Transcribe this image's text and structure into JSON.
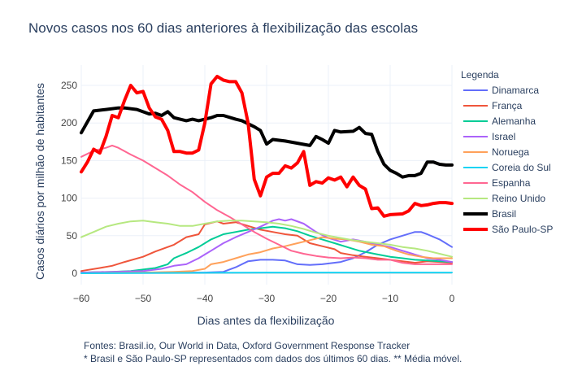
{
  "chart_data": {
    "type": "line",
    "title": "Novos casos nos 60 dias anteriores à flexibilização das escolas",
    "xlabel": "Dias antes da flexibilização",
    "ylabel": "Casos diários por milhão de habitantes",
    "xlim": [
      -60,
      0
    ],
    "ylim": [
      -15,
      275
    ],
    "x_ticks": [
      "−60",
      "−50",
      "−40",
      "−30",
      "−20",
      "−10",
      "0"
    ],
    "y_ticks": [
      "0",
      "50",
      "100",
      "150",
      "200",
      "250"
    ],
    "legend_title": "Legenda",
    "legend_position": "right",
    "grid": true,
    "series": [
      {
        "name": "Dinamarca",
        "color": "#636efa",
        "width": 2,
        "points": [
          [
            -60,
            1
          ],
          [
            -50,
            1
          ],
          [
            -40,
            1
          ],
          [
            -37,
            2
          ],
          [
            -35,
            8
          ],
          [
            -33,
            16
          ],
          [
            -31,
            18
          ],
          [
            -29,
            18
          ],
          [
            -27,
            17
          ],
          [
            -25,
            12
          ],
          [
            -23,
            11
          ],
          [
            -21,
            12
          ],
          [
            -18,
            15
          ],
          [
            -16,
            20
          ],
          [
            -14,
            28
          ],
          [
            -12,
            38
          ],
          [
            -10,
            45
          ],
          [
            -8,
            50
          ],
          [
            -6,
            55
          ],
          [
            -5,
            55
          ],
          [
            -4,
            52
          ],
          [
            -2,
            45
          ],
          [
            0,
            35
          ]
        ]
      },
      {
        "name": "França",
        "color": "#ef553b",
        "width": 2,
        "points": [
          [
            -60,
            3
          ],
          [
            -57,
            7
          ],
          [
            -55,
            10
          ],
          [
            -53,
            15
          ],
          [
            -50,
            22
          ],
          [
            -48,
            29
          ],
          [
            -45,
            38
          ],
          [
            -43,
            48
          ],
          [
            -41,
            52
          ],
          [
            -40,
            65
          ],
          [
            -38,
            69
          ],
          [
            -37,
            66
          ],
          [
            -35,
            68
          ],
          [
            -33,
            63
          ],
          [
            -31,
            58
          ],
          [
            -29,
            55
          ],
          [
            -27,
            52
          ],
          [
            -25,
            50
          ],
          [
            -23,
            40
          ],
          [
            -21,
            36
          ],
          [
            -19,
            32
          ],
          [
            -18,
            27
          ],
          [
            -16,
            24
          ],
          [
            -14,
            22
          ],
          [
            -12,
            20
          ],
          [
            -10,
            18
          ],
          [
            -8,
            16
          ],
          [
            -6,
            14
          ],
          [
            -4,
            16
          ],
          [
            -2,
            15
          ],
          [
            0,
            14
          ]
        ]
      },
      {
        "name": "Alemanha",
        "color": "#00cc96",
        "width": 2,
        "points": [
          [
            -60,
            1
          ],
          [
            -55,
            2
          ],
          [
            -52,
            3
          ],
          [
            -50,
            5
          ],
          [
            -48,
            7
          ],
          [
            -46,
            12
          ],
          [
            -45,
            20
          ],
          [
            -43,
            27
          ],
          [
            -41,
            35
          ],
          [
            -39,
            45
          ],
          [
            -37,
            52
          ],
          [
            -35,
            55
          ],
          [
            -33,
            58
          ],
          [
            -31,
            60
          ],
          [
            -29,
            62
          ],
          [
            -27,
            60
          ],
          [
            -25,
            56
          ],
          [
            -23,
            50
          ],
          [
            -21,
            45
          ],
          [
            -19,
            40
          ],
          [
            -17,
            35
          ],
          [
            -15,
            30
          ],
          [
            -12,
            25
          ],
          [
            -10,
            22
          ],
          [
            -8,
            20
          ],
          [
            -6,
            18
          ],
          [
            -4,
            17
          ],
          [
            -2,
            16
          ],
          [
            0,
            15
          ]
        ]
      },
      {
        "name": "Israel",
        "color": "#ab63fa",
        "width": 2,
        "points": [
          [
            -60,
            1
          ],
          [
            -55,
            2
          ],
          [
            -50,
            3
          ],
          [
            -47,
            6
          ],
          [
            -45,
            10
          ],
          [
            -43,
            12
          ],
          [
            -41,
            20
          ],
          [
            -39,
            30
          ],
          [
            -37,
            40
          ],
          [
            -35,
            48
          ],
          [
            -33,
            55
          ],
          [
            -31,
            62
          ],
          [
            -29,
            70
          ],
          [
            -28,
            72
          ],
          [
            -27,
            70
          ],
          [
            -26,
            72
          ],
          [
            -24,
            66
          ],
          [
            -22,
            55
          ],
          [
            -20,
            47
          ],
          [
            -18,
            42
          ],
          [
            -16,
            45
          ],
          [
            -14,
            42
          ],
          [
            -12,
            38
          ],
          [
            -10,
            35
          ],
          [
            -8,
            30
          ],
          [
            -6,
            25
          ],
          [
            -4,
            20
          ],
          [
            -2,
            18
          ],
          [
            0,
            15
          ]
        ]
      },
      {
        "name": "Noruega",
        "color": "#ffa15a",
        "width": 2,
        "points": [
          [
            -60,
            0
          ],
          [
            -50,
            1
          ],
          [
            -45,
            2
          ],
          [
            -42,
            3
          ],
          [
            -40,
            6
          ],
          [
            -39,
            12
          ],
          [
            -37,
            15
          ],
          [
            -35,
            20
          ],
          [
            -33,
            25
          ],
          [
            -31,
            28
          ],
          [
            -29,
            33
          ],
          [
            -27,
            36
          ],
          [
            -25,
            40
          ],
          [
            -23,
            44
          ],
          [
            -21,
            48
          ],
          [
            -19,
            46
          ],
          [
            -17,
            45
          ],
          [
            -15,
            42
          ],
          [
            -13,
            38
          ],
          [
            -11,
            36
          ],
          [
            -9,
            30
          ],
          [
            -7,
            25
          ],
          [
            -5,
            22
          ],
          [
            -3,
            20
          ],
          [
            -1,
            20
          ],
          [
            0,
            20
          ]
        ]
      },
      {
        "name": "Coreia do Sul",
        "color": "#19d3f3",
        "width": 2,
        "points": [
          [
            -60,
            0
          ],
          [
            -30,
            1
          ],
          [
            -20,
            1
          ],
          [
            -10,
            1
          ],
          [
            0,
            1
          ]
        ]
      },
      {
        "name": "Espanha",
        "color": "#ff6692",
        "width": 2,
        "points": [
          [
            -60,
            155
          ],
          [
            -58,
            163
          ],
          [
            -56,
            167
          ],
          [
            -55,
            170
          ],
          [
            -54,
            167
          ],
          [
            -52,
            158
          ],
          [
            -50,
            150
          ],
          [
            -48,
            140
          ],
          [
            -46,
            130
          ],
          [
            -44,
            118
          ],
          [
            -42,
            108
          ],
          [
            -40,
            95
          ],
          [
            -38,
            84
          ],
          [
            -36,
            75
          ],
          [
            -34,
            65
          ],
          [
            -32,
            55
          ],
          [
            -30,
            46
          ],
          [
            -28,
            38
          ],
          [
            -26,
            30
          ],
          [
            -24,
            26
          ],
          [
            -22,
            23
          ],
          [
            -20,
            21
          ],
          [
            -18,
            20
          ],
          [
            -16,
            21
          ],
          [
            -14,
            20
          ],
          [
            -12,
            18
          ],
          [
            -10,
            18
          ],
          [
            -8,
            14
          ],
          [
            -6,
            12
          ],
          [
            -4,
            12
          ],
          [
            -2,
            12
          ],
          [
            0,
            12
          ]
        ]
      },
      {
        "name": "Reino Unido",
        "color": "#b6e880",
        "width": 2,
        "points": [
          [
            -60,
            48
          ],
          [
            -58,
            55
          ],
          [
            -56,
            62
          ],
          [
            -54,
            66
          ],
          [
            -52,
            69
          ],
          [
            -50,
            70
          ],
          [
            -48,
            68
          ],
          [
            -46,
            66
          ],
          [
            -44,
            63
          ],
          [
            -42,
            63
          ],
          [
            -40,
            66
          ],
          [
            -38,
            69
          ],
          [
            -36,
            70
          ],
          [
            -34,
            70
          ],
          [
            -32,
            69
          ],
          [
            -30,
            68
          ],
          [
            -28,
            66
          ],
          [
            -26,
            63
          ],
          [
            -24,
            59
          ],
          [
            -22,
            54
          ],
          [
            -20,
            50
          ],
          [
            -18,
            47
          ],
          [
            -16,
            44
          ],
          [
            -14,
            42
          ],
          [
            -12,
            40
          ],
          [
            -10,
            38
          ],
          [
            -8,
            35
          ],
          [
            -6,
            33
          ],
          [
            -4,
            30
          ],
          [
            -2,
            26
          ],
          [
            0,
            22
          ]
        ]
      },
      {
        "name": "Brasil",
        "color": "#000000",
        "width": 4,
        "points": [
          [
            -60,
            187
          ],
          [
            -58,
            216
          ],
          [
            -56,
            218
          ],
          [
            -54,
            220
          ],
          [
            -53,
            220
          ],
          [
            -51,
            218
          ],
          [
            -49,
            212
          ],
          [
            -48,
            213
          ],
          [
            -47,
            210
          ],
          [
            -46,
            215
          ],
          [
            -45,
            207
          ],
          [
            -43,
            203
          ],
          [
            -42,
            205
          ],
          [
            -41,
            203
          ],
          [
            -39,
            207
          ],
          [
            -38,
            210
          ],
          [
            -37,
            210
          ],
          [
            -35,
            205
          ],
          [
            -34,
            203
          ],
          [
            -32,
            195
          ],
          [
            -31,
            190
          ],
          [
            -30,
            172
          ],
          [
            -29,
            178
          ],
          [
            -27,
            176
          ],
          [
            -25,
            173
          ],
          [
            -23,
            170
          ],
          [
            -22,
            182
          ],
          [
            -21,
            178
          ],
          [
            -20,
            173
          ],
          [
            -19,
            190
          ],
          [
            -18,
            188
          ],
          [
            -16,
            189
          ],
          [
            -15,
            194
          ],
          [
            -14,
            186
          ],
          [
            -13,
            185
          ],
          [
            -12,
            162
          ],
          [
            -11,
            145
          ],
          [
            -10,
            137
          ],
          [
            -9,
            133
          ],
          [
            -8,
            128
          ],
          [
            -7,
            130
          ],
          [
            -6,
            130
          ],
          [
            -5,
            133
          ],
          [
            -4,
            148
          ],
          [
            -3,
            148
          ],
          [
            -2,
            145
          ],
          [
            -1,
            144
          ],
          [
            0,
            144
          ]
        ]
      },
      {
        "name": "São Paulo-SP",
        "color": "#ff0000",
        "width": 4,
        "points": [
          [
            -60,
            135
          ],
          [
            -59,
            148
          ],
          [
            -58,
            165
          ],
          [
            -57,
            160
          ],
          [
            -56,
            182
          ],
          [
            -55,
            210
          ],
          [
            -54,
            207
          ],
          [
            -53,
            230
          ],
          [
            -52,
            250
          ],
          [
            -51,
            240
          ],
          [
            -50,
            242
          ],
          [
            -49,
            220
          ],
          [
            -48,
            208
          ],
          [
            -47,
            205
          ],
          [
            -46,
            190
          ],
          [
            -45,
            162
          ],
          [
            -44,
            162
          ],
          [
            -43,
            160
          ],
          [
            -42,
            160
          ],
          [
            -41,
            164
          ],
          [
            -40,
            200
          ],
          [
            -39,
            252
          ],
          [
            -38,
            262
          ],
          [
            -37,
            257
          ],
          [
            -36,
            255
          ],
          [
            -35,
            255
          ],
          [
            -34,
            240
          ],
          [
            -33,
            200
          ],
          [
            -32,
            125
          ],
          [
            -31,
            103
          ],
          [
            -30,
            128
          ],
          [
            -29,
            133
          ],
          [
            -28,
            133
          ],
          [
            -27,
            143
          ],
          [
            -26,
            140
          ],
          [
            -25,
            147
          ],
          [
            -24,
            162
          ],
          [
            -23,
            117
          ],
          [
            -22,
            122
          ],
          [
            -21,
            120
          ],
          [
            -20,
            127
          ],
          [
            -19,
            124
          ],
          [
            -18,
            128
          ],
          [
            -17,
            115
          ],
          [
            -16,
            128
          ],
          [
            -15,
            117
          ],
          [
            -14,
            112
          ],
          [
            -13,
            86
          ],
          [
            -12,
            87
          ],
          [
            -11,
            76
          ],
          [
            -10,
            78
          ],
          [
            -8,
            79
          ],
          [
            -7,
            83
          ],
          [
            -6,
            93
          ],
          [
            -5,
            90
          ],
          [
            -4,
            91
          ],
          [
            -3,
            93
          ],
          [
            -2,
            94
          ],
          [
            -1,
            94
          ],
          [
            0,
            93
          ]
        ]
      }
    ]
  },
  "footnotes": [
    "Fontes: Brasil.io, Our World in Data, Oxford Government Response Tracker",
    "* Brasil e São Paulo-SP representados com dados dos últimos 60 dias. ** Média móvel."
  ]
}
